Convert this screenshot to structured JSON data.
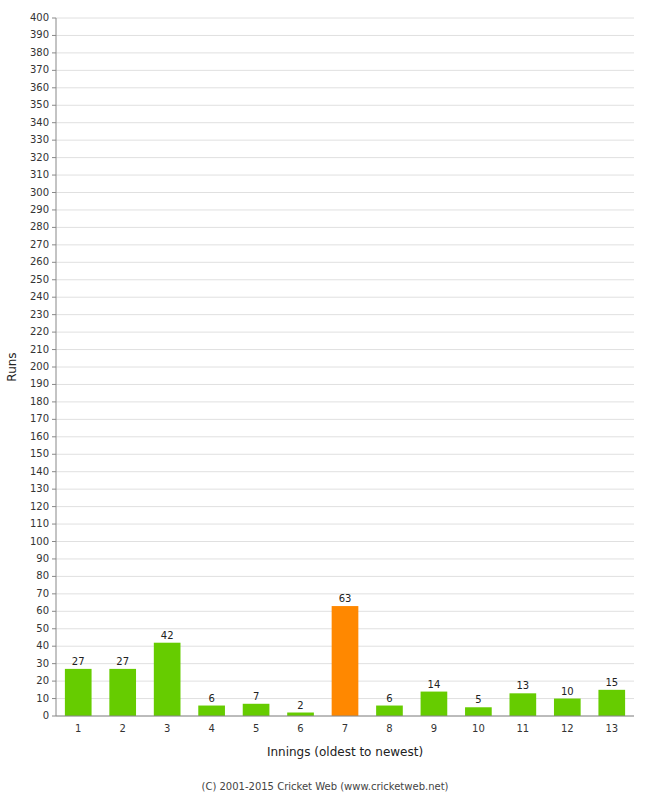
{
  "chart_data": {
    "type": "bar",
    "xlabel": "Innings (oldest to newest)",
    "ylabel": "Runs",
    "categories": [
      "1",
      "2",
      "3",
      "4",
      "5",
      "6",
      "7",
      "8",
      "9",
      "10",
      "11",
      "12",
      "13"
    ],
    "values": [
      27,
      27,
      42,
      6,
      7,
      2,
      63,
      6,
      14,
      5,
      13,
      10,
      15
    ],
    "colors": [
      "#66cc00",
      "#66cc00",
      "#66cc00",
      "#66cc00",
      "#66cc00",
      "#66cc00",
      "#ff8800",
      "#66cc00",
      "#66cc00",
      "#66cc00",
      "#66cc00",
      "#66cc00",
      "#66cc00"
    ],
    "ylim": [
      0,
      400
    ],
    "yticks": [
      0,
      10,
      20,
      30,
      40,
      50,
      60,
      70,
      80,
      90,
      100,
      110,
      120,
      130,
      140,
      150,
      160,
      170,
      180,
      190,
      200,
      210,
      220,
      230,
      240,
      250,
      260,
      270,
      280,
      290,
      300,
      310,
      320,
      330,
      340,
      350,
      360,
      370,
      380,
      390,
      400
    ],
    "grid": true,
    "data_labels": true,
    "annotations": [
      "(C) 2001-2015 Cricket Web (www.cricketweb.net)"
    ]
  }
}
